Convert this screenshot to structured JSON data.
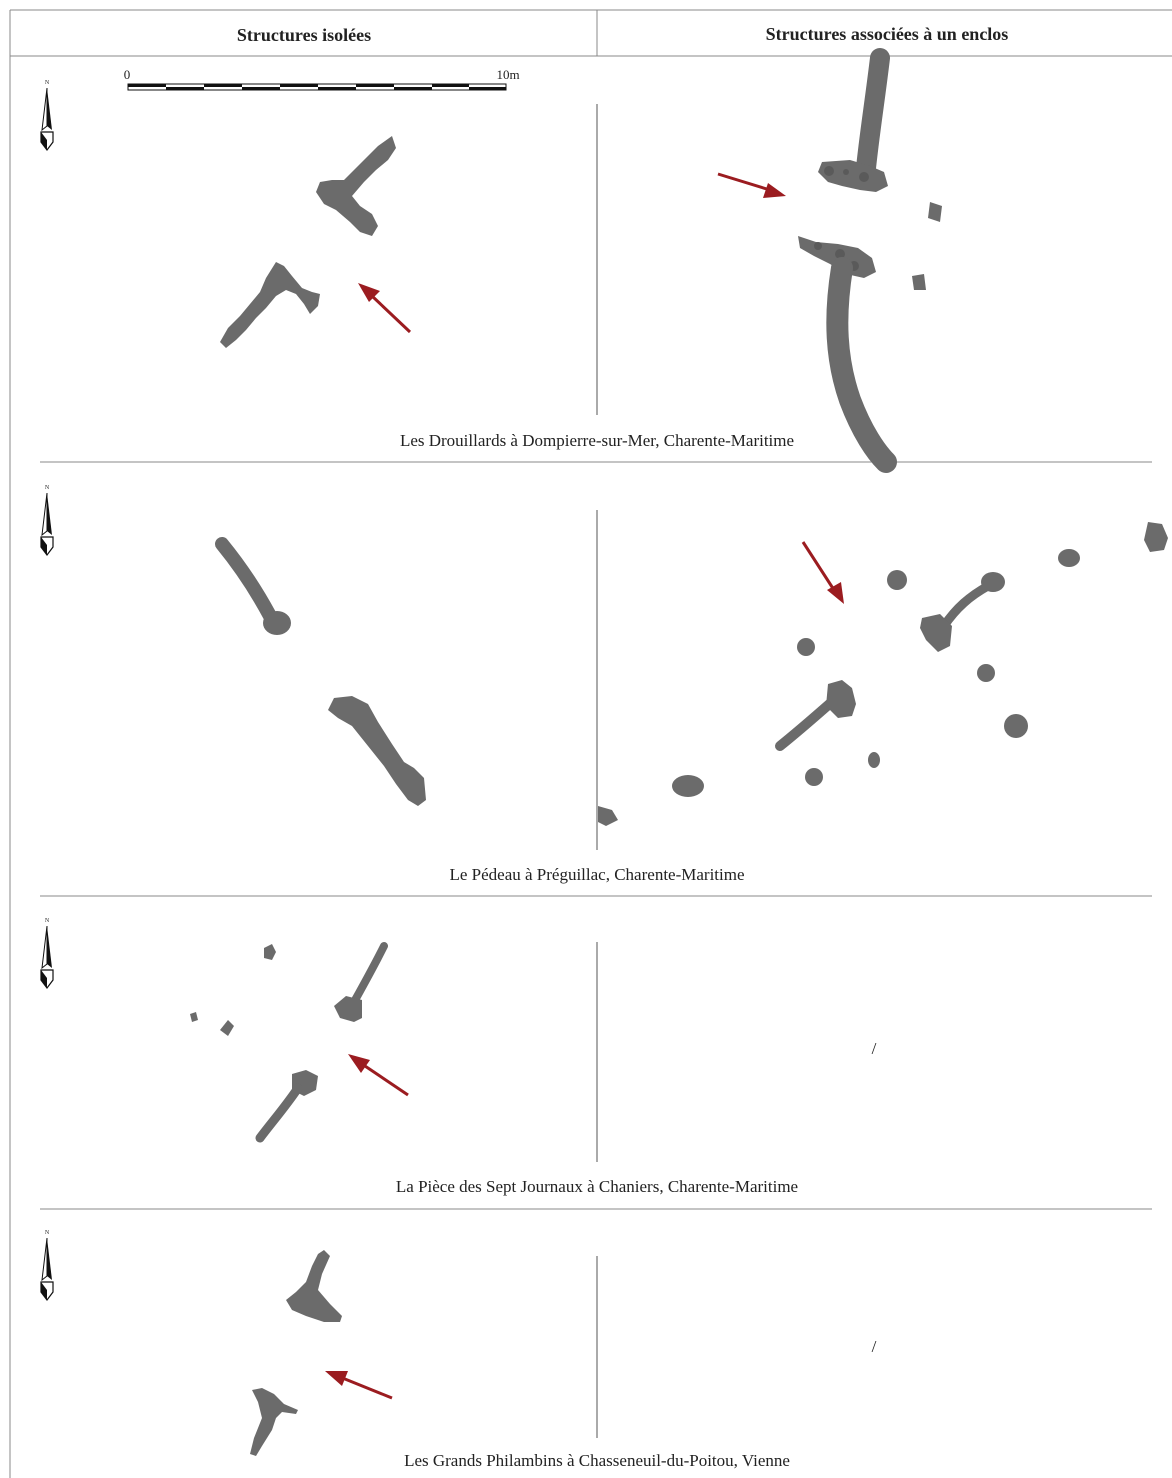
{
  "headers": {
    "left": "Structures isolées",
    "right": "Structures associées à un enclos"
  },
  "scale_bar": {
    "start": "0",
    "end": "10m"
  },
  "north_label": "N",
  "sites": [
    {
      "name": "Les Drouillards à Dompierre-sur-Mer, Charente-Maritime",
      "right_placeholder": ""
    },
    {
      "name": "Le Pédeau à Préguillac, Charente-Maritime",
      "right_placeholder": ""
    },
    {
      "name": "La Pièce des Sept Journaux à Chaniers, Charente-Maritime",
      "right_placeholder": "/"
    },
    {
      "name": "Les Grands Philambins à Chasseneuil-du-Poitou, Vienne",
      "right_placeholder": "/"
    }
  ],
  "colors": {
    "feature_fill": "#6b6b6b",
    "arrow": "#9b1c20",
    "rule": "#888888"
  }
}
